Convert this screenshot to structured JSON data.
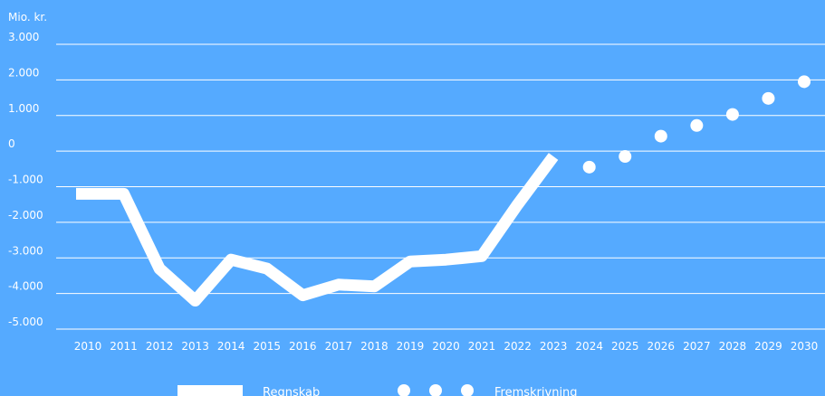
{
  "chart_data": {
    "type": "line",
    "unit_label": "Mio. kr.",
    "ylim": [
      -5000,
      3000
    ],
    "y_ticks": [
      3000,
      2000,
      1000,
      0,
      -1000,
      -2000,
      -3000,
      -4000,
      -5000
    ],
    "y_tick_labels": [
      "3.000",
      "2.000",
      "1.000",
      "0",
      "-1.000",
      "-2.000",
      "-3.000",
      "-4.000",
      "-5.000"
    ],
    "x": [
      "2010",
      "2011",
      "2012",
      "2013",
      "2014",
      "2015",
      "2016",
      "2017",
      "2018",
      "2019",
      "2020",
      "2021",
      "2022",
      "2023",
      "2024",
      "2025",
      "2026",
      "2027",
      "2028",
      "2029",
      "2030"
    ],
    "grid": true,
    "legend_position": "bottom",
    "series": [
      {
        "name": "Regnskab",
        "style": "solid-line",
        "x": [
          "2010",
          "2011",
          "2012",
          "2013",
          "2014",
          "2015",
          "2016",
          "2017",
          "2018",
          "2019",
          "2020",
          "2021",
          "2022",
          "2023"
        ],
        "values": [
          -1200,
          -1200,
          -3300,
          -4200,
          -3050,
          -3300,
          -4050,
          -3750,
          -3800,
          -3100,
          -3050,
          -2950,
          -1500,
          -150
        ]
      },
      {
        "name": "Fremskrivning",
        "style": "dots",
        "x": [
          "2024",
          "2025",
          "2026",
          "2027",
          "2028",
          "2029",
          "2030"
        ],
        "values": [
          -450,
          -150,
          420,
          720,
          1030,
          1480,
          1950
        ]
      }
    ],
    "colors": {
      "background": "#55aaff",
      "foreground": "#ffffff"
    }
  }
}
